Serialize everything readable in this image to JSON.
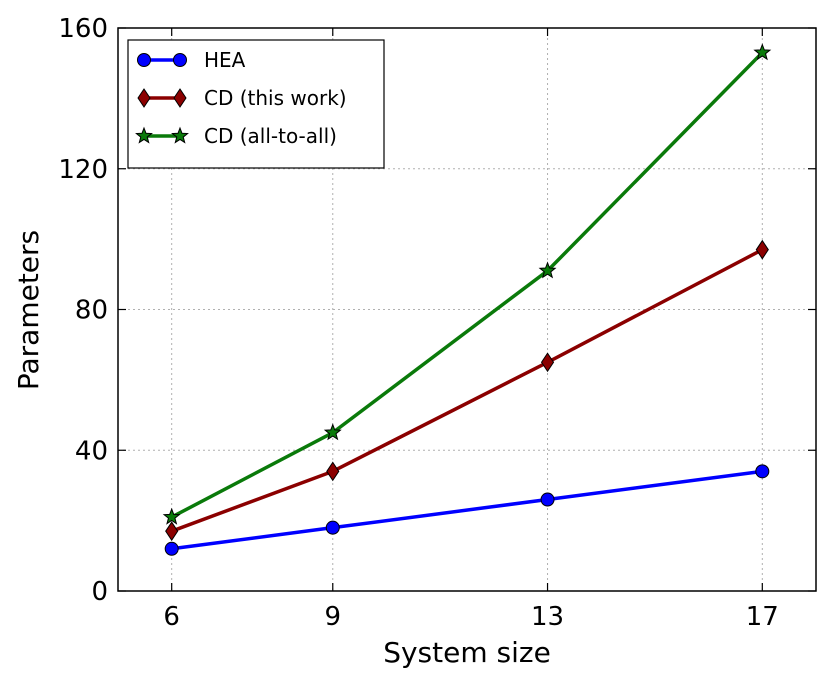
{
  "chart_data": {
    "type": "line",
    "title": "",
    "xlabel": "System size",
    "ylabel": "Parameters",
    "x": [
      6,
      9,
      13,
      17
    ],
    "xlim": [
      5,
      18
    ],
    "ylim": [
      0,
      160
    ],
    "xticks": [
      6,
      9,
      13,
      17
    ],
    "yticks": [
      0,
      40,
      80,
      120,
      160
    ],
    "grid": true,
    "legend_position": "upper-left",
    "series": [
      {
        "name": "HEA",
        "values": [
          12,
          18,
          26,
          34
        ],
        "color": "#0000ff",
        "marker": "circle"
      },
      {
        "name": "CD (this work)",
        "values": [
          17,
          34,
          65,
          97
        ],
        "color": "#8b0000",
        "marker": "diamond"
      },
      {
        "name": "CD (all-to-all)",
        "values": [
          21,
          45,
          91,
          153
        ],
        "color": "#0a7a0a",
        "marker": "star"
      }
    ]
  }
}
